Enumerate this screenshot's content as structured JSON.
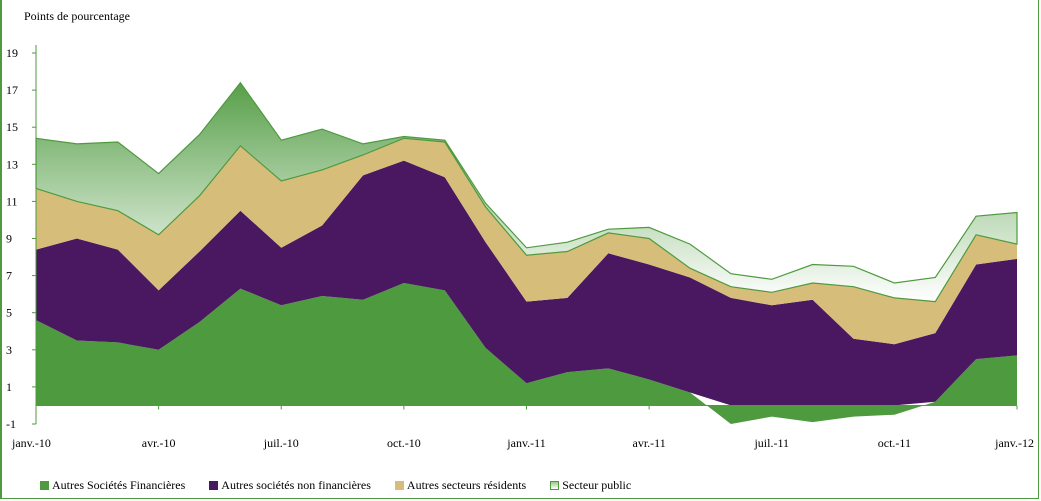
{
  "chart_data": {
    "type": "area",
    "stacked": true,
    "ylabel": "Points de pourcentage",
    "ylim": [
      -1,
      19
    ],
    "yticks": [
      -1,
      1,
      3,
      5,
      7,
      9,
      11,
      13,
      15,
      17,
      19
    ],
    "x": [
      "janv.-10",
      "févr.-10",
      "mars-10",
      "avr.-10",
      "mai-10",
      "juin-10",
      "juil.-10",
      "août-10",
      "sept.-10",
      "oct.-10",
      "nov.-10",
      "déc.-10",
      "janv.-11",
      "févr.-11",
      "mars-11",
      "avr.-11",
      "mai-11",
      "juin-11",
      "juil.-11",
      "août-11",
      "sept.-11",
      "oct.-11",
      "nov.-11",
      "déc.-11",
      "janv.-12"
    ],
    "x_tick_labels": [
      "janv.-10",
      "avr.-10",
      "juil.-10",
      "oct.-10",
      "janv.-11",
      "avr.-11",
      "juil.-11",
      "oct.-11",
      "janv.-12"
    ],
    "x_tick_indices": [
      0,
      3,
      6,
      9,
      12,
      15,
      18,
      21,
      24
    ],
    "series": [
      {
        "name": "Autres Sociétés Financières",
        "color": "#4e9a3f",
        "values": [
          4.6,
          3.5,
          3.4,
          3.0,
          4.5,
          6.3,
          5.4,
          5.9,
          5.7,
          6.6,
          6.2,
          3.1,
          1.2,
          1.8,
          2.0,
          1.4,
          0.7,
          -1.0,
          -0.6,
          -0.9,
          -0.6,
          -0.5,
          0.2,
          2.5,
          2.7
        ]
      },
      {
        "name": "Autres sociétés non financières",
        "color": "#4a1860",
        "values": [
          3.8,
          5.5,
          5.0,
          3.2,
          3.8,
          4.2,
          3.1,
          3.8,
          6.7,
          6.6,
          6.1,
          5.7,
          4.4,
          4.0,
          6.2,
          6.2,
          6.2,
          5.8,
          5.4,
          5.7,
          3.6,
          3.3,
          3.7,
          5.1,
          5.2
        ]
      },
      {
        "name": "Autres secteurs résidents",
        "color": "#d6be7a",
        "values": [
          3.3,
          2.0,
          2.1,
          3.0,
          3.0,
          3.5,
          3.6,
          3.0,
          1.1,
          1.2,
          1.9,
          1.9,
          2.5,
          2.5,
          1.1,
          1.4,
          0.5,
          0.6,
          0.7,
          0.9,
          2.8,
          2.5,
          1.7,
          1.6,
          0.8
        ]
      },
      {
        "name": "Secteur public",
        "color": "#4e9a3f",
        "values": [
          2.7,
          3.1,
          3.7,
          3.3,
          3.3,
          3.4,
          2.2,
          2.2,
          0.6,
          0.1,
          0.1,
          0.2,
          0.4,
          0.5,
          0.2,
          0.6,
          1.3,
          0.7,
          0.7,
          1.0,
          1.1,
          0.8,
          1.3,
          1.0,
          1.7
        ]
      }
    ],
    "legend": [
      "Autres Sociétés Financières",
      "Autres sociétés non financières",
      "Autres secteurs résidents",
      "Secteur public"
    ],
    "legend_position": "bottom",
    "grid": false
  }
}
